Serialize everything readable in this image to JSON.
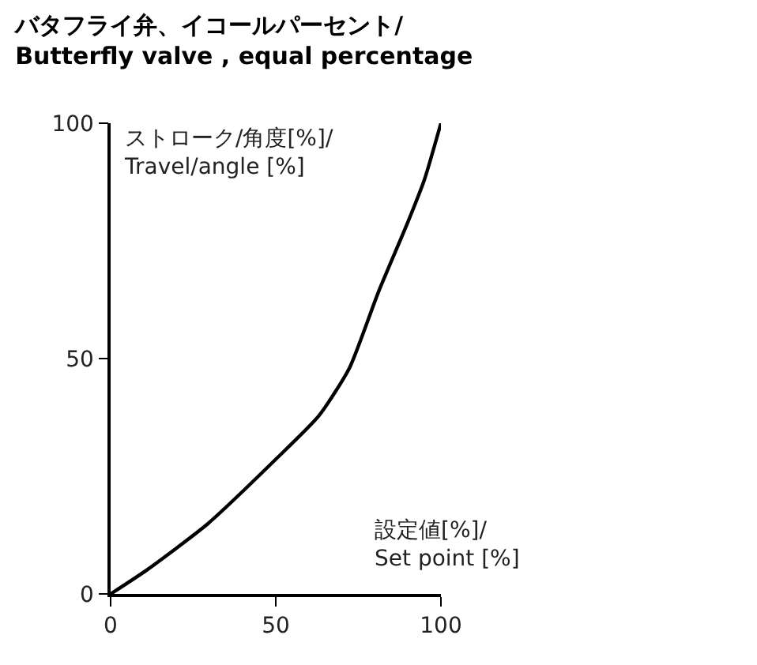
{
  "chart_data": {
    "type": "line",
    "title": "バタフライ弁、イコールパーセント/\nButterfly valve , equal percentage",
    "xlabel": "設定値[%]/\nSet point [%]",
    "ylabel": "ストローク/角度[%]/\nTravel/angle [%]",
    "series": [
      {
        "color": "#000000",
        "x": [
          0,
          11,
          29.4,
          50,
          63,
          72.3,
          81,
          90,
          95,
          100
        ],
        "values": [
          0,
          5.1,
          14.9,
          28.6,
          37.8,
          48,
          64,
          79,
          88,
          100
        ]
      }
    ],
    "xlim": [
      0,
      100
    ],
    "ylim": [
      0,
      100
    ],
    "xticks": [
      0,
      50,
      100
    ],
    "yticks": [
      0,
      50,
      100
    ],
    "marker": "none",
    "line_style": "solid"
  }
}
